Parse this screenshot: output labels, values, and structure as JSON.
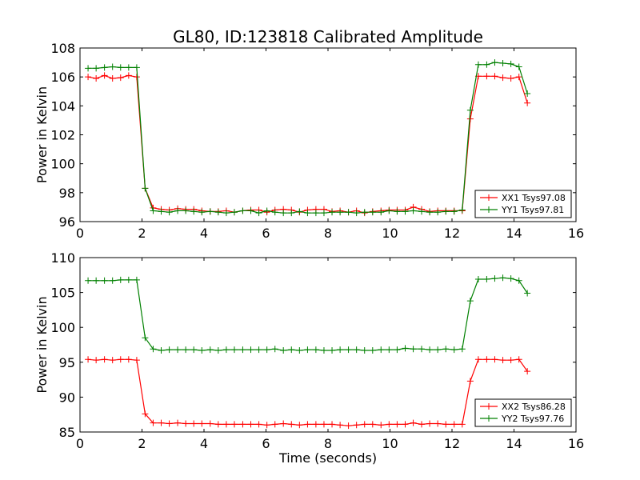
{
  "title": "GL80, ID:123818 Calibrated Amplitude",
  "chart_data": [
    {
      "type": "line",
      "title": "GL80, ID:123818 Calibrated Amplitude",
      "xlabel": "",
      "ylabel": "Power in Kelvin",
      "xlim": [
        0,
        16
      ],
      "ylim": [
        96,
        108
      ],
      "xticks": [
        "0",
        "2",
        "4",
        "6",
        "8",
        "10",
        "12",
        "14",
        "16"
      ],
      "yticks": [
        "96",
        "98",
        "100",
        "102",
        "104",
        "106",
        "108"
      ],
      "grid": false,
      "legend": "lower-right",
      "marker": "+",
      "series": [
        {
          "name": "XX1 Tsys97.08",
          "color": "#ff0000",
          "x": [
            0.26,
            0.52,
            0.79,
            1.05,
            1.31,
            1.57,
            1.83,
            2.1,
            2.36,
            2.62,
            2.88,
            3.15,
            3.41,
            3.67,
            3.93,
            4.2,
            4.46,
            4.72,
            4.98,
            5.25,
            5.51,
            5.77,
            6.03,
            6.29,
            6.56,
            6.82,
            7.08,
            7.34,
            7.61,
            7.87,
            8.13,
            8.39,
            8.66,
            8.92,
            9.18,
            9.44,
            9.71,
            9.97,
            10.23,
            10.49,
            10.75,
            11.02,
            11.28,
            11.54,
            11.8,
            12.07,
            12.33,
            12.59,
            12.85,
            13.12,
            13.38,
            13.64,
            13.9,
            14.16,
            14.43
          ],
          "y": [
            106.0,
            105.9,
            106.1,
            105.9,
            105.95,
            106.1,
            106.0,
            98.3,
            96.95,
            96.85,
            96.8,
            96.9,
            96.85,
            96.85,
            96.75,
            96.7,
            96.7,
            96.75,
            96.65,
            96.75,
            96.8,
            96.8,
            96.65,
            96.8,
            96.85,
            96.8,
            96.65,
            96.8,
            96.85,
            96.85,
            96.7,
            96.75,
            96.65,
            96.75,
            96.6,
            96.7,
            96.75,
            96.8,
            96.8,
            96.8,
            97.0,
            96.85,
            96.7,
            96.75,
            96.75,
            96.75,
            96.75,
            103.1,
            106.05,
            106.05,
            106.05,
            105.95,
            105.9,
            106.0,
            104.2
          ]
        },
        {
          "name": "YY1 Tsys97.81",
          "color": "#008000",
          "x": [
            0.26,
            0.52,
            0.79,
            1.05,
            1.31,
            1.57,
            1.83,
            2.1,
            2.36,
            2.62,
            2.88,
            3.15,
            3.41,
            3.67,
            3.93,
            4.2,
            4.46,
            4.72,
            4.98,
            5.25,
            5.51,
            5.77,
            6.03,
            6.29,
            6.56,
            6.82,
            7.08,
            7.34,
            7.61,
            7.87,
            8.13,
            8.39,
            8.66,
            8.92,
            9.18,
            9.44,
            9.71,
            9.97,
            10.23,
            10.49,
            10.75,
            11.02,
            11.28,
            11.54,
            11.8,
            12.07,
            12.33,
            12.59,
            12.85,
            13.12,
            13.38,
            13.64,
            13.9,
            14.16,
            14.43
          ],
          "y": [
            106.6,
            106.6,
            106.65,
            106.7,
            106.65,
            106.65,
            106.65,
            98.3,
            96.75,
            96.7,
            96.65,
            96.75,
            96.75,
            96.7,
            96.65,
            96.7,
            96.65,
            96.6,
            96.65,
            96.75,
            96.75,
            96.6,
            96.75,
            96.65,
            96.6,
            96.6,
            96.7,
            96.6,
            96.6,
            96.6,
            96.65,
            96.65,
            96.65,
            96.6,
            96.65,
            96.65,
            96.65,
            96.75,
            96.7,
            96.7,
            96.75,
            96.7,
            96.65,
            96.65,
            96.7,
            96.7,
            96.8,
            103.7,
            106.85,
            106.85,
            107.0,
            106.95,
            106.9,
            106.7,
            104.85
          ]
        }
      ]
    },
    {
      "type": "line",
      "title": "",
      "xlabel": "Time (seconds)",
      "ylabel": "Power in Kelvin",
      "xlim": [
        0,
        16
      ],
      "ylim": [
        85,
        110
      ],
      "xticks": [
        "0",
        "2",
        "4",
        "6",
        "8",
        "10",
        "12",
        "14",
        "16"
      ],
      "yticks": [
        "85",
        "90",
        "95",
        "100",
        "105",
        "110"
      ],
      "grid": false,
      "legend": "lower-right",
      "marker": "+",
      "series": [
        {
          "name": "XX2 Tsys86.28",
          "color": "#ff0000",
          "x": [
            0.26,
            0.52,
            0.79,
            1.05,
            1.31,
            1.57,
            1.83,
            2.1,
            2.36,
            2.62,
            2.88,
            3.15,
            3.41,
            3.67,
            3.93,
            4.2,
            4.46,
            4.72,
            4.98,
            5.25,
            5.51,
            5.77,
            6.03,
            6.29,
            6.56,
            6.82,
            7.08,
            7.34,
            7.61,
            7.87,
            8.13,
            8.39,
            8.66,
            8.92,
            9.18,
            9.44,
            9.71,
            9.97,
            10.23,
            10.49,
            10.75,
            11.02,
            11.28,
            11.54,
            11.8,
            12.07,
            12.33,
            12.59,
            12.85,
            13.12,
            13.38,
            13.64,
            13.9,
            14.16,
            14.43
          ],
          "y": [
            95.4,
            95.3,
            95.4,
            95.3,
            95.4,
            95.4,
            95.3,
            87.6,
            86.3,
            86.3,
            86.2,
            86.3,
            86.2,
            86.2,
            86.2,
            86.2,
            86.1,
            86.1,
            86.1,
            86.1,
            86.1,
            86.1,
            86.0,
            86.1,
            86.2,
            86.1,
            86.0,
            86.1,
            86.1,
            86.1,
            86.1,
            86.0,
            85.9,
            86.0,
            86.1,
            86.1,
            86.0,
            86.1,
            86.1,
            86.1,
            86.3,
            86.1,
            86.2,
            86.2,
            86.1,
            86.1,
            86.1,
            92.3,
            95.4,
            95.4,
            95.4,
            95.3,
            95.3,
            95.4,
            93.7
          ]
        },
        {
          "name": "YY2 Tsys97.76",
          "color": "#008000",
          "x": [
            0.26,
            0.52,
            0.79,
            1.05,
            1.31,
            1.57,
            1.83,
            2.1,
            2.36,
            2.62,
            2.88,
            3.15,
            3.41,
            3.67,
            3.93,
            4.2,
            4.46,
            4.72,
            4.98,
            5.25,
            5.51,
            5.77,
            6.03,
            6.29,
            6.56,
            6.82,
            7.08,
            7.34,
            7.61,
            7.87,
            8.13,
            8.39,
            8.66,
            8.92,
            9.18,
            9.44,
            9.71,
            9.97,
            10.23,
            10.49,
            10.75,
            11.02,
            11.28,
            11.54,
            11.8,
            12.07,
            12.33,
            12.59,
            12.85,
            13.12,
            13.38,
            13.64,
            13.9,
            14.16,
            14.43
          ],
          "y": [
            106.7,
            106.7,
            106.7,
            106.7,
            106.8,
            106.8,
            106.8,
            98.5,
            96.9,
            96.7,
            96.8,
            96.8,
            96.8,
            96.8,
            96.7,
            96.8,
            96.7,
            96.8,
            96.8,
            96.8,
            96.8,
            96.8,
            96.8,
            96.9,
            96.7,
            96.8,
            96.7,
            96.8,
            96.8,
            96.7,
            96.7,
            96.8,
            96.8,
            96.8,
            96.7,
            96.7,
            96.8,
            96.8,
            96.8,
            97.0,
            96.9,
            96.9,
            96.8,
            96.8,
            96.9,
            96.8,
            96.9,
            103.8,
            106.9,
            106.9,
            107.0,
            107.1,
            107.0,
            106.7,
            104.9
          ]
        }
      ]
    }
  ]
}
